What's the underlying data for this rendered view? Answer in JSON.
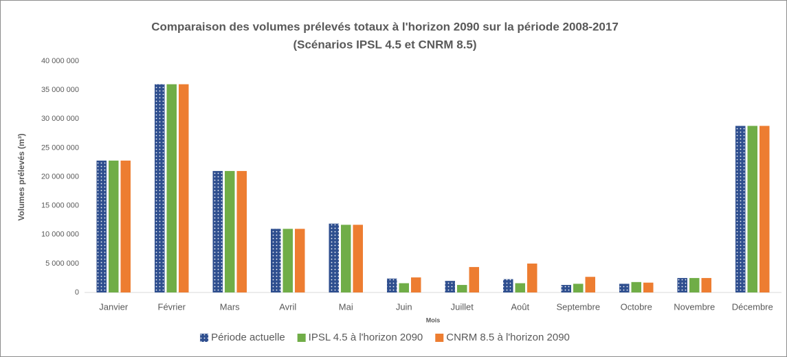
{
  "chart_data": {
    "type": "bar",
    "title": "Comparaison des volumes prélevés totaux à l'horizon 2090 sur la période 2008-2017",
    "subtitle": "(Scénarios IPSL 4.5 et CNRM 8.5)",
    "y_label": "Volumes prélevés (m³)",
    "x_label": "Mois",
    "categories": [
      "Janvier",
      "Février",
      "Mars",
      "Avril",
      "Mai",
      "Juin",
      "Juillet",
      "Août",
      "Septembre",
      "Octobre",
      "Novembre",
      "Décembre"
    ],
    "series": [
      {
        "name": "Période actuelle",
        "color": "#2f4f8f",
        "pattern": "dots",
        "values": [
          22800000,
          36000000,
          21000000,
          11000000,
          11900000,
          2400000,
          2000000,
          2300000,
          1300000,
          1500000,
          2500000,
          28800000
        ]
      },
      {
        "name": "IPSL 4.5 à l'horizon 2090",
        "color": "#70ad47",
        "values": [
          22800000,
          36000000,
          21000000,
          11000000,
          11700000,
          1600000,
          1300000,
          1600000,
          1500000,
          1800000,
          2500000,
          28800000
        ]
      },
      {
        "name": "CNRM 8.5 à l'horizon 2090",
        "color": "#ed7d31",
        "values": [
          22800000,
          36000000,
          21000000,
          11000000,
          11700000,
          2600000,
          4400000,
          5000000,
          2700000,
          1700000,
          2500000,
          28800000
        ]
      }
    ],
    "ylim": [
      0,
      40000000
    ],
    "yticks": [
      0,
      {
        "value": 5000000,
        "label": "5 000 000"
      },
      {
        "value": 10000000,
        "label": "10 000 000"
      },
      {
        "value": 15000000,
        "label": "15 000 000"
      },
      {
        "value": 20000000,
        "label": "20 000 000"
      },
      {
        "value": 25000000,
        "label": "25 000 000"
      },
      {
        "value": 30000000,
        "label": "30 000 000"
      },
      {
        "value": 35000000,
        "label": "35 000 000"
      },
      {
        "value": 40000000,
        "label": "40 000 000"
      }
    ],
    "legend": "bottom"
  }
}
